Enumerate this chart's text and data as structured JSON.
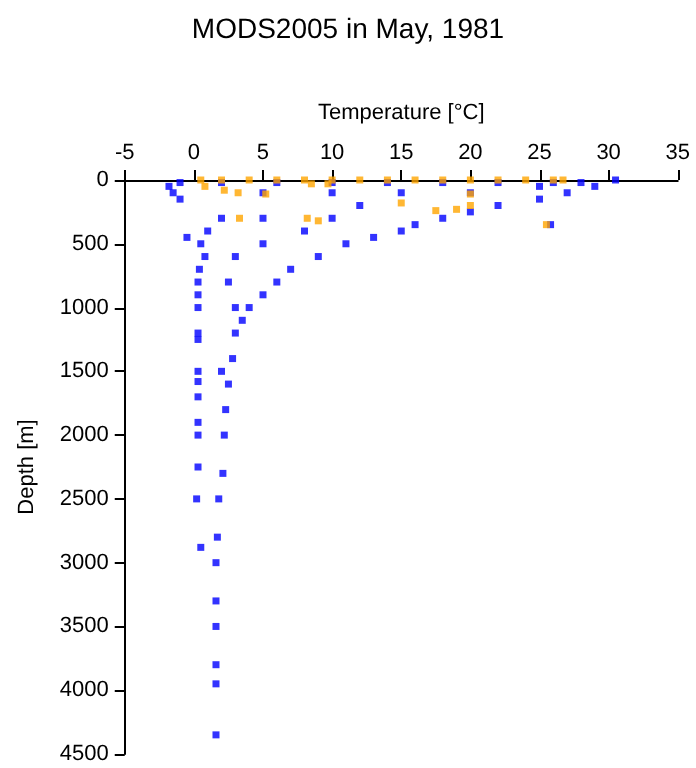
{
  "chart_data": {
    "type": "scatter",
    "title": "MODS2005 in May, 1981",
    "xlabel": "Temperature [°C]",
    "ylabel": "Depth [m]",
    "xlim": [
      -5,
      35
    ],
    "xticks": [
      -5,
      0,
      5,
      10,
      15,
      20,
      25,
      30,
      35
    ],
    "ylim": [
      4500,
      0
    ],
    "yticks": [
      0,
      500,
      1000,
      1500,
      2000,
      2500,
      3000,
      3500,
      4000,
      4500
    ],
    "grid": false,
    "marker": "square",
    "series": [
      {
        "color": "#0000ff",
        "x": [
          30.5,
          29,
          27,
          25,
          22,
          20,
          18,
          16,
          15,
          13,
          11,
          9,
          7,
          6,
          5,
          4,
          3.5,
          3,
          2.8,
          2.5,
          2.3,
          2.2,
          2.1,
          1.8,
          1.7,
          1.6,
          1.6,
          1.6,
          1.6,
          1.6,
          1.6,
          -1.8,
          -1.5,
          -1,
          -0.5,
          0.5,
          0.8,
          0.4,
          0.3,
          0.3,
          0.3,
          0.3,
          0.3,
          0.3,
          0.3,
          0.3,
          0.3,
          0.3,
          0.3,
          0.2,
          0.5,
          5,
          10,
          15,
          20,
          5,
          10,
          3,
          5,
          8,
          2.5,
          3,
          2,
          25,
          12,
          2,
          1,
          25.8,
          -1,
          2,
          6,
          10,
          14,
          18,
          22,
          26,
          28
        ],
        "values": [
          0,
          50,
          100,
          150,
          200,
          250,
          300,
          350,
          400,
          450,
          500,
          600,
          700,
          800,
          900,
          1000,
          1100,
          1200,
          1400,
          1600,
          1800,
          2000,
          2300,
          2500,
          2800,
          3000,
          3300,
          3500,
          3800,
          3950,
          4350,
          50,
          100,
          150,
          450,
          500,
          600,
          700,
          800,
          900,
          1000,
          1200,
          1250,
          1500,
          1580,
          1700,
          1900,
          2000,
          2250,
          2500,
          2880,
          100,
          100,
          100,
          100,
          300,
          300,
          600,
          500,
          400,
          800,
          1000,
          1500,
          50,
          200,
          300,
          400,
          350,
          20,
          20,
          20,
          20,
          20,
          20,
          20,
          20,
          20
        ]
      },
      {
        "color": "#ffa500",
        "x": [
          0.5,
          2,
          4,
          6,
          8,
          10,
          12,
          14,
          16,
          18,
          20,
          22,
          24,
          26,
          26.7,
          2.2,
          3.2,
          5.2,
          8.5,
          15,
          17.5,
          19,
          20,
          20,
          3.3,
          8.2,
          9,
          25.5,
          9.7,
          0.8
        ],
        "values": [
          0,
          0,
          0,
          0,
          0,
          0,
          0,
          0,
          0,
          0,
          0,
          0,
          0,
          0,
          0,
          80,
          100,
          110,
          30,
          180,
          240,
          230,
          200,
          110,
          300,
          300,
          320,
          350,
          30,
          50
        ]
      }
    ]
  }
}
